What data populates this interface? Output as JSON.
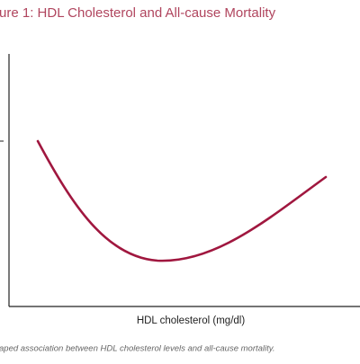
{
  "figure": {
    "title": "ure 1: HDL Cholesterol and All-cause Mortality",
    "x_axis_label": "HDL cholesterol (mg/dl)",
    "caption": "aped association between HDL cholesterol levels and all-cause mortality."
  }
}
